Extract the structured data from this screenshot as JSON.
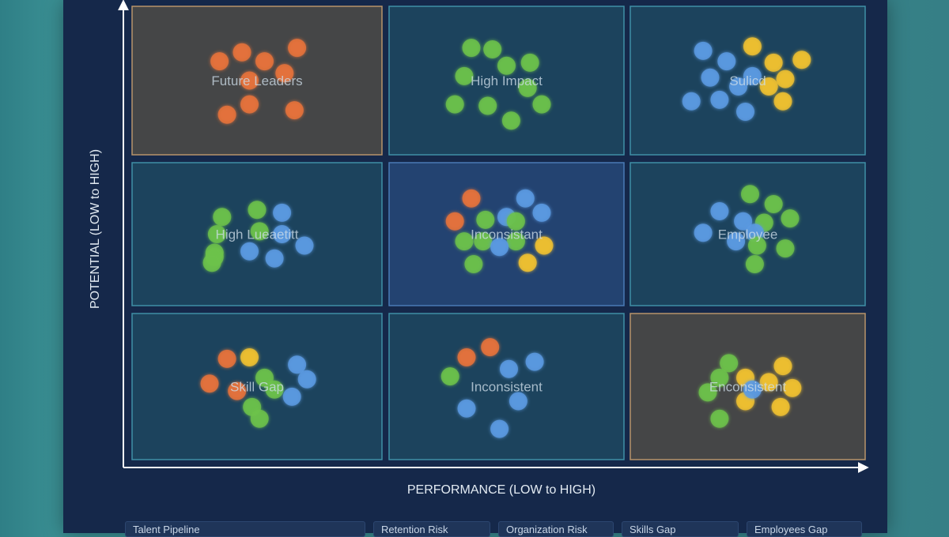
{
  "chart_data": {
    "type": "scatter",
    "title": "",
    "xlabel": "PERFORMANCE (LOW to HIGH)",
    "ylabel": "POTENTIAL (LOW to HIGH)",
    "grid": "3x3",
    "colors": {
      "orange": "#e8733a",
      "green": "#6cc24a",
      "blue": "#5b9be3",
      "yellow": "#f2c230"
    },
    "cells": [
      {
        "label": "Future Leaders",
        "col": 0,
        "row": 0,
        "style": "warm",
        "points": [
          {
            "c": "orange",
            "x": 0.35,
            "y": 0.37
          },
          {
            "c": "orange",
            "x": 0.44,
            "y": 0.31
          },
          {
            "c": "orange",
            "x": 0.53,
            "y": 0.37
          },
          {
            "c": "orange",
            "x": 0.66,
            "y": 0.28
          },
          {
            "c": "orange",
            "x": 0.61,
            "y": 0.45
          },
          {
            "c": "orange",
            "x": 0.47,
            "y": 0.5
          },
          {
            "c": "orange",
            "x": 0.47,
            "y": 0.66
          },
          {
            "c": "orange",
            "x": 0.38,
            "y": 0.73
          },
          {
            "c": "orange",
            "x": 0.65,
            "y": 0.7
          }
        ]
      },
      {
        "label": "High Impact",
        "col": 1,
        "row": 0,
        "style": "teal",
        "points": [
          {
            "c": "green",
            "x": 0.35,
            "y": 0.28
          },
          {
            "c": "green",
            "x": 0.44,
            "y": 0.29
          },
          {
            "c": "green",
            "x": 0.5,
            "y": 0.4
          },
          {
            "c": "green",
            "x": 0.6,
            "y": 0.38
          },
          {
            "c": "green",
            "x": 0.32,
            "y": 0.47
          },
          {
            "c": "green",
            "x": 0.59,
            "y": 0.55
          },
          {
            "c": "green",
            "x": 0.28,
            "y": 0.66
          },
          {
            "c": "green",
            "x": 0.42,
            "y": 0.67
          },
          {
            "c": "green",
            "x": 0.52,
            "y": 0.77
          },
          {
            "c": "green",
            "x": 0.65,
            "y": 0.66
          }
        ]
      },
      {
        "label": "Sulicd",
        "col": 2,
        "row": 0,
        "style": "teal",
        "points": [
          {
            "c": "blue",
            "x": 0.31,
            "y": 0.3
          },
          {
            "c": "blue",
            "x": 0.41,
            "y": 0.37
          },
          {
            "c": "blue",
            "x": 0.34,
            "y": 0.48
          },
          {
            "c": "blue",
            "x": 0.46,
            "y": 0.54
          },
          {
            "c": "blue",
            "x": 0.26,
            "y": 0.64
          },
          {
            "c": "blue",
            "x": 0.38,
            "y": 0.63
          },
          {
            "c": "blue",
            "x": 0.49,
            "y": 0.71
          },
          {
            "c": "yellow",
            "x": 0.52,
            "y": 0.27
          },
          {
            "c": "yellow",
            "x": 0.61,
            "y": 0.38
          },
          {
            "c": "yellow",
            "x": 0.73,
            "y": 0.36
          },
          {
            "c": "yellow",
            "x": 0.66,
            "y": 0.49
          },
          {
            "c": "yellow",
            "x": 0.59,
            "y": 0.54
          },
          {
            "c": "yellow",
            "x": 0.65,
            "y": 0.64
          },
          {
            "c": "blue",
            "x": 0.52,
            "y": 0.47
          }
        ]
      },
      {
        "label": "High Lueaetitt",
        "col": 0,
        "row": 1,
        "style": "teal",
        "points": [
          {
            "c": "green",
            "x": 0.36,
            "y": 0.38
          },
          {
            "c": "green",
            "x": 0.5,
            "y": 0.33
          },
          {
            "c": "green",
            "x": 0.51,
            "y": 0.48
          },
          {
            "c": "green",
            "x": 0.33,
            "y": 0.63
          },
          {
            "c": "green",
            "x": 0.34,
            "y": 0.5
          },
          {
            "c": "blue",
            "x": 0.6,
            "y": 0.35
          },
          {
            "c": "blue",
            "x": 0.6,
            "y": 0.5
          },
          {
            "c": "blue",
            "x": 0.47,
            "y": 0.62
          },
          {
            "c": "blue",
            "x": 0.57,
            "y": 0.67
          },
          {
            "c": "blue",
            "x": 0.69,
            "y": 0.58
          },
          {
            "c": "green",
            "x": 0.33,
            "y": 0.66
          },
          {
            "c": "green",
            "x": 0.32,
            "y": 0.7
          }
        ]
      },
      {
        "label": "Inconsistant",
        "col": 1,
        "row": 1,
        "style": "blue",
        "points": [
          {
            "c": "orange",
            "x": 0.35,
            "y": 0.25
          },
          {
            "c": "orange",
            "x": 0.28,
            "y": 0.41
          },
          {
            "c": "green",
            "x": 0.41,
            "y": 0.4
          },
          {
            "c": "green",
            "x": 0.32,
            "y": 0.55
          },
          {
            "c": "green",
            "x": 0.4,
            "y": 0.55
          },
          {
            "c": "green",
            "x": 0.36,
            "y": 0.71
          },
          {
            "c": "blue",
            "x": 0.5,
            "y": 0.38
          },
          {
            "c": "blue",
            "x": 0.58,
            "y": 0.25
          },
          {
            "c": "blue",
            "x": 0.65,
            "y": 0.35
          },
          {
            "c": "green",
            "x": 0.54,
            "y": 0.41
          },
          {
            "c": "green",
            "x": 0.54,
            "y": 0.55
          },
          {
            "c": "blue",
            "x": 0.47,
            "y": 0.59
          },
          {
            "c": "yellow",
            "x": 0.66,
            "y": 0.58
          },
          {
            "c": "yellow",
            "x": 0.59,
            "y": 0.7
          }
        ]
      },
      {
        "label": "Employee",
        "col": 2,
        "row": 1,
        "style": "teal",
        "points": [
          {
            "c": "green",
            "x": 0.51,
            "y": 0.22
          },
          {
            "c": "green",
            "x": 0.61,
            "y": 0.29
          },
          {
            "c": "green",
            "x": 0.68,
            "y": 0.39
          },
          {
            "c": "green",
            "x": 0.57,
            "y": 0.42
          },
          {
            "c": "blue",
            "x": 0.38,
            "y": 0.34
          },
          {
            "c": "blue",
            "x": 0.48,
            "y": 0.41
          },
          {
            "c": "blue",
            "x": 0.31,
            "y": 0.49
          },
          {
            "c": "blue",
            "x": 0.45,
            "y": 0.55
          },
          {
            "c": "blue",
            "x": 0.53,
            "y": 0.49
          },
          {
            "c": "green",
            "x": 0.54,
            "y": 0.58
          },
          {
            "c": "green",
            "x": 0.66,
            "y": 0.6
          },
          {
            "c": "green",
            "x": 0.53,
            "y": 0.71
          }
        ]
      },
      {
        "label": "Skill Gap",
        "col": 0,
        "row": 2,
        "style": "teal",
        "points": [
          {
            "c": "orange",
            "x": 0.38,
            "y": 0.31
          },
          {
            "c": "yellow",
            "x": 0.47,
            "y": 0.3
          },
          {
            "c": "orange",
            "x": 0.31,
            "y": 0.48
          },
          {
            "c": "orange",
            "x": 0.42,
            "y": 0.53
          },
          {
            "c": "green",
            "x": 0.53,
            "y": 0.44
          },
          {
            "c": "green",
            "x": 0.57,
            "y": 0.52
          },
          {
            "c": "green",
            "x": 0.48,
            "y": 0.64
          },
          {
            "c": "green",
            "x": 0.51,
            "y": 0.72
          },
          {
            "c": "blue",
            "x": 0.66,
            "y": 0.35
          },
          {
            "c": "blue",
            "x": 0.7,
            "y": 0.45
          },
          {
            "c": "blue",
            "x": 0.64,
            "y": 0.57
          }
        ]
      },
      {
        "label": "Inconsistent",
        "col": 1,
        "row": 2,
        "style": "teal",
        "points": [
          {
            "c": "orange",
            "x": 0.33,
            "y": 0.3
          },
          {
            "c": "orange",
            "x": 0.43,
            "y": 0.23
          },
          {
            "c": "green",
            "x": 0.26,
            "y": 0.43
          },
          {
            "c": "blue",
            "x": 0.51,
            "y": 0.38
          },
          {
            "c": "blue",
            "x": 0.62,
            "y": 0.33
          },
          {
            "c": "blue",
            "x": 0.33,
            "y": 0.65
          },
          {
            "c": "blue",
            "x": 0.55,
            "y": 0.6
          },
          {
            "c": "blue",
            "x": 0.47,
            "y": 0.79
          }
        ]
      },
      {
        "label": "Enconsistent",
        "col": 2,
        "row": 2,
        "style": "warm",
        "points": [
          {
            "c": "green",
            "x": 0.42,
            "y": 0.34
          },
          {
            "c": "green",
            "x": 0.38,
            "y": 0.44
          },
          {
            "c": "green",
            "x": 0.33,
            "y": 0.54
          },
          {
            "c": "green",
            "x": 0.38,
            "y": 0.72
          },
          {
            "c": "yellow",
            "x": 0.49,
            "y": 0.44
          },
          {
            "c": "yellow",
            "x": 0.59,
            "y": 0.47
          },
          {
            "c": "yellow",
            "x": 0.65,
            "y": 0.36
          },
          {
            "c": "yellow",
            "x": 0.69,
            "y": 0.51
          },
          {
            "c": "yellow",
            "x": 0.49,
            "y": 0.6
          },
          {
            "c": "yellow",
            "x": 0.64,
            "y": 0.64
          },
          {
            "c": "blue",
            "x": 0.52,
            "y": 0.52
          }
        ]
      }
    ]
  },
  "tabs": [
    "Talent Pipeline",
    "Retention Risk",
    "Organization Risk",
    "Skills Gap",
    "Employees Gap"
  ]
}
